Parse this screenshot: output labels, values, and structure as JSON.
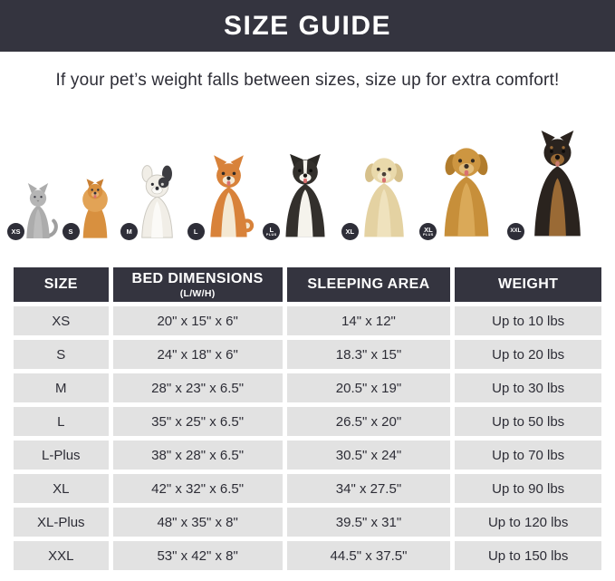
{
  "header": {
    "title": "SIZE GUIDE"
  },
  "subtitle": "If your pet’s weight falls between sizes, size up for extra comfort!",
  "animals": [
    {
      "species": "cat",
      "badge": "XS"
    },
    {
      "species": "pomeranian",
      "badge": "S"
    },
    {
      "species": "french-bulldog",
      "badge": "M"
    },
    {
      "species": "shiba-inu",
      "badge": "L"
    },
    {
      "species": "border-collie",
      "badge": "L",
      "badge_sub": "PLUS"
    },
    {
      "species": "labrador-retriever",
      "badge": "XL"
    },
    {
      "species": "golden-retriever",
      "badge": "XL",
      "badge_sub": "PLUS"
    },
    {
      "species": "doberman",
      "badge": "XXL"
    }
  ],
  "table": {
    "columns": [
      {
        "label": "SIZE"
      },
      {
        "label": "BED DIMENSIONS",
        "sub": "(L/W/H)"
      },
      {
        "label": "SLEEPING AREA"
      },
      {
        "label": "WEIGHT"
      }
    ],
    "rows": [
      [
        "XS",
        "20\" x 15\" x 6\"",
        "14\" x 12\"",
        "Up to 10 lbs"
      ],
      [
        "S",
        "24\" x 18\" x 6\"",
        "18.3\" x 15\"",
        "Up to 20 lbs"
      ],
      [
        "M",
        "28\" x 23\" x 6.5\"",
        "20.5\" x 19\"",
        "Up to 30 lbs"
      ],
      [
        "L",
        "35\" x 25\" x 6.5\"",
        "26.5\" x 20\"",
        "Up to 50 lbs"
      ],
      [
        "L-Plus",
        "38\" x 28\" x 6.5\"",
        "30.5\" x 24\"",
        "Up to 70 lbs"
      ],
      [
        "XL",
        "42\" x 32\" x 6.5\"",
        "34\" x 27.5\"",
        "Up to 90 lbs"
      ],
      [
        "XL-Plus",
        "48\" x 35\" x 8\"",
        "39.5\" x 31\"",
        "Up to 120 lbs"
      ],
      [
        "XXL",
        "53\" x 42\" x 8\"",
        "44.5\" x 37.5\"",
        "Up to 150 lbs"
      ]
    ]
  },
  "colors": {
    "header_bg": "#34343f",
    "table_header_bg": "#34343f",
    "row_bg": "#e2e2e2",
    "badge_bg": "#2e2e38",
    "title_text": "#ffffff",
    "body_text": "#2d2d36"
  }
}
